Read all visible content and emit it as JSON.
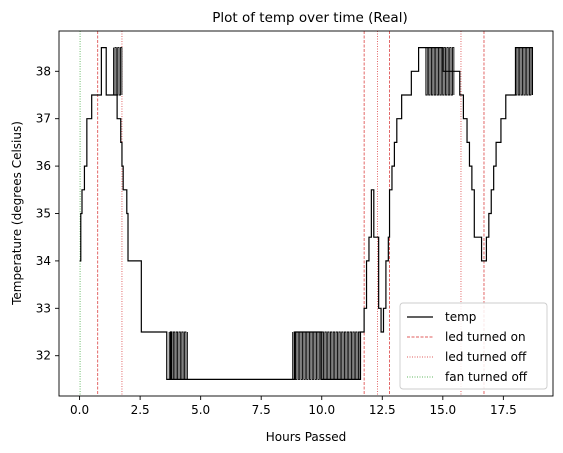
{
  "chart_data": {
    "type": "line",
    "title": "Plot of temp over time (Real)",
    "xlabel": "Hours Passed",
    "ylabel": "Temperature (degrees Celsius)",
    "xlim": [
      -0.85,
      19.55
    ],
    "ylim": [
      31.15,
      38.85
    ],
    "x_ticks": [
      0,
      2.5,
      5,
      7.5,
      10,
      12.5,
      15,
      17.5
    ],
    "x_tick_labels": [
      "0.0",
      "2.5",
      "5.0",
      "7.5",
      "10.0",
      "12.5",
      "15.0",
      "17.5"
    ],
    "y_ticks": [
      32,
      33,
      34,
      35,
      36,
      37,
      38
    ],
    "y_tick_labels": [
      "32",
      "33",
      "34",
      "35",
      "36",
      "37",
      "38"
    ],
    "grid": false,
    "legend_position": "lower-right",
    "series": [
      {
        "name": "temp",
        "color": "#000000",
        "x": [
          0.0,
          0.05,
          0.1,
          0.15,
          0.2,
          0.3,
          0.4,
          0.5,
          0.7,
          0.9,
          1.1,
          1.4,
          1.55,
          1.7,
          1.75,
          1.8,
          1.85,
          1.95,
          2.0,
          2.1,
          2.2,
          2.3,
          2.55,
          2.65,
          2.8,
          3.3,
          3.6,
          3.75,
          3.8,
          5.0,
          7.5,
          8.8,
          8.9,
          10.0,
          11.6,
          11.75,
          11.85,
          11.95,
          12.05,
          12.15,
          12.25,
          12.35,
          12.45,
          12.55,
          12.65,
          12.75,
          12.8,
          12.9,
          13.0,
          13.1,
          13.2,
          13.3,
          13.4,
          13.5,
          13.6,
          13.7,
          13.8,
          13.9,
          14.0,
          14.1,
          14.3,
          14.9,
          15.0,
          15.5,
          15.7,
          15.85,
          16.0,
          16.1,
          16.2,
          16.3,
          16.6,
          16.7,
          16.8,
          16.9,
          17.0,
          17.1,
          17.2,
          17.4,
          17.6,
          17.7,
          18.0,
          18.7
        ],
        "y": [
          34.0,
          35.0,
          35.5,
          35.5,
          36.0,
          37.0,
          37.0,
          37.5,
          37.5,
          38.5,
          37.5,
          37.5,
          37.0,
          36.5,
          36.0,
          35.5,
          35.5,
          35.0,
          34.0,
          34.0,
          34.0,
          34.0,
          32.5,
          32.5,
          32.5,
          32.5,
          31.5,
          32.5,
          31.5,
          31.5,
          31.5,
          31.5,
          32.5,
          31.5,
          32.5,
          33.0,
          34.0,
          34.5,
          35.5,
          34.5,
          34.5,
          33.0,
          32.5,
          33.0,
          34.0,
          34.5,
          35.5,
          36.0,
          36.5,
          37.0,
          37.0,
          37.5,
          37.5,
          37.5,
          37.5,
          38.0,
          38.0,
          38.0,
          38.5,
          38.5,
          38.5,
          38.5,
          38.0,
          38.0,
          37.5,
          37.0,
          36.5,
          36.0,
          35.5,
          34.5,
          34.0,
          34.0,
          34.5,
          35.0,
          35.5,
          36.0,
          36.5,
          37.0,
          37.5,
          37.5,
          38.5,
          37.5
        ]
      }
    ],
    "oscillation_bands": [
      {
        "x_start": 1.4,
        "x_end": 1.75,
        "y_low": 37.5,
        "y_high": 38.5
      },
      {
        "x_start": 3.7,
        "x_end": 4.5,
        "y_low": 31.5,
        "y_high": 32.5
      },
      {
        "x_start": 8.8,
        "x_end": 11.6,
        "y_low": 31.5,
        "y_high": 32.5
      },
      {
        "x_start": 14.3,
        "x_end": 15.5,
        "y_low": 37.5,
        "y_high": 38.5
      },
      {
        "x_start": 18.0,
        "x_end": 18.7,
        "y_low": 37.5,
        "y_high": 38.5
      }
    ],
    "event_lines": [
      {
        "name": "led turned on",
        "color": "#d62728",
        "style": "dashed",
        "x": [
          0.75,
          11.75,
          12.8,
          16.7
        ]
      },
      {
        "name": "led turned off",
        "color": "#d62728",
        "style": "dotted",
        "x": [
          1.75,
          12.3,
          15.75
        ]
      },
      {
        "name": "fan turned off",
        "color": "#2ca02c",
        "style": "dotted",
        "x": [
          0.02
        ]
      }
    ],
    "legend": [
      "temp",
      "led turned on",
      "led turned off",
      "fan turned off"
    ]
  }
}
